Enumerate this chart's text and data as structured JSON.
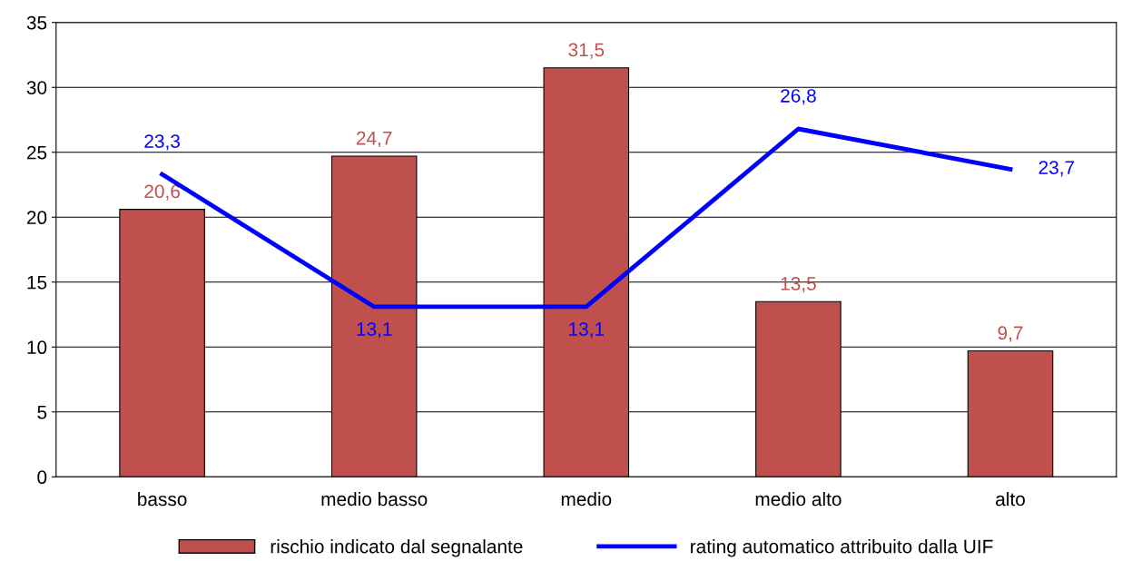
{
  "chart_data": {
    "type": "bar",
    "categories": [
      "basso",
      "medio basso",
      "medio",
      "medio alto",
      "alto"
    ],
    "series": [
      {
        "name": "rischio indicato dal segnalante",
        "color": "#c0504d",
        "values": [
          20.6,
          24.7,
          31.5,
          13.5,
          9.7
        ],
        "value_labels": [
          "20,6",
          "24,7",
          "31,5",
          "13,5",
          "9,7"
        ]
      },
      {
        "name": "rating automatico attribuito dalla UIF",
        "type": "line",
        "color": "#0000ff",
        "values": [
          23.3,
          13.1,
          13.1,
          26.8,
          23.7
        ],
        "value_labels": [
          "23,3",
          "13,1",
          "13,1",
          "26,8",
          "23,7"
        ]
      }
    ],
    "ylim": [
      0,
      35
    ],
    "yticks": [
      0,
      5,
      10,
      15,
      20,
      25,
      30,
      35
    ],
    "grid": "y",
    "legend": "bottom",
    "marker": "none",
    "line_style": "solid"
  }
}
